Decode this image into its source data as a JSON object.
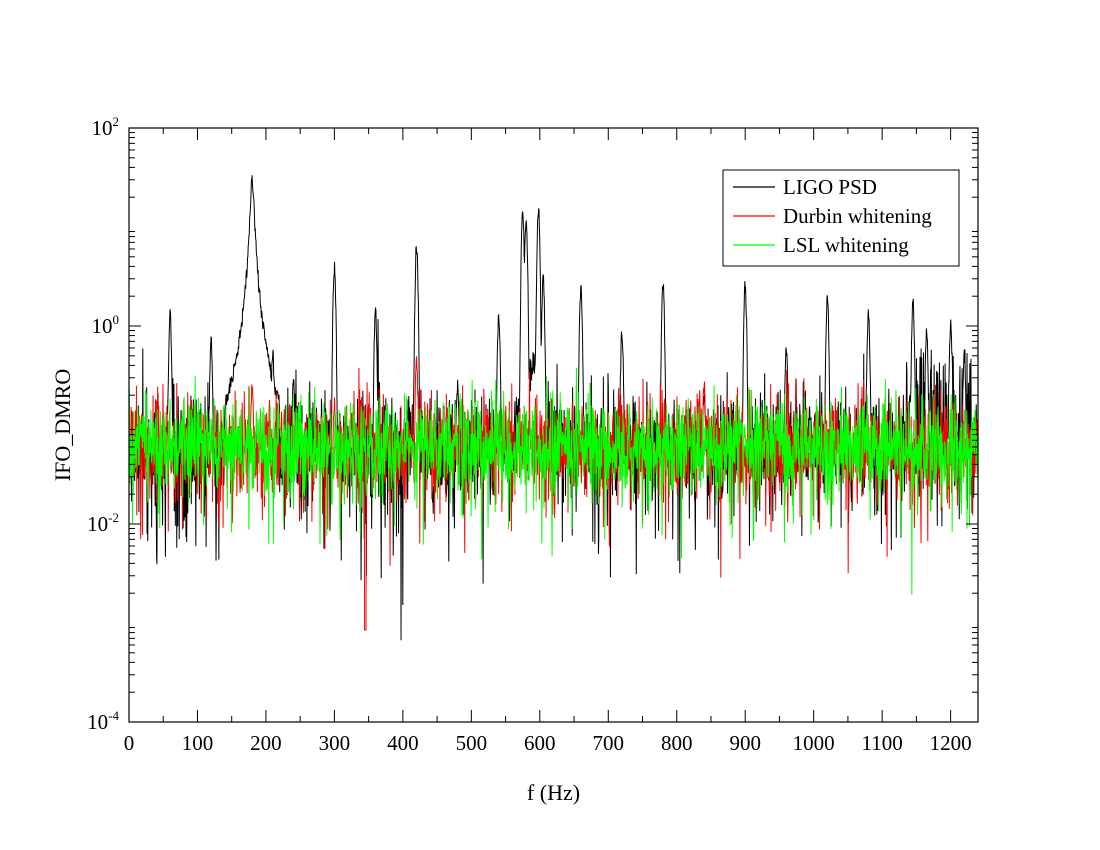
{
  "chart_data": {
    "type": "line",
    "xlabel": "f (Hz)",
    "ylabel": "IFO_DMRO",
    "xlim": [
      0,
      1240
    ],
    "ylim": [
      0.0001,
      100
    ],
    "yscale": "log",
    "x_ticks": [
      0,
      100,
      200,
      300,
      400,
      500,
      600,
      700,
      800,
      900,
      1000,
      1100,
      1200
    ],
    "x_tick_labels": [
      "0",
      "100",
      "200",
      "300",
      "400",
      "500",
      "600",
      "700",
      "800",
      "900",
      "1000",
      "1100",
      "1200"
    ],
    "y_ticks": [
      {
        "value": 100,
        "base": "10",
        "exp": "2"
      },
      {
        "value": 1,
        "base": "10",
        "exp": "0"
      },
      {
        "value": 0.01,
        "base": "10",
        "exp": "-2"
      },
      {
        "value": 0.0001,
        "base": "10",
        "exp": "-4"
      }
    ],
    "grid": false,
    "legend_position": "top-right",
    "series": [
      {
        "name": "LIGO PSD",
        "color": "#000000",
        "noise": {
          "median": 0.06,
          "log_spread": 1.0,
          "seed": 11,
          "extra_floor_drop": true
        },
        "peaks": [
          {
            "f": 60,
            "amp": 1.5
          },
          {
            "f": 120,
            "amp": 0.8
          },
          {
            "f": 180,
            "amp": 35,
            "wide": true
          },
          {
            "f": 210,
            "amp": 0.6
          },
          {
            "f": 240,
            "amp": 0.35
          },
          {
            "f": 300,
            "amp": 4.5
          },
          {
            "f": 360,
            "amp": 1.6
          },
          {
            "f": 420,
            "amp": 7.5
          },
          {
            "f": 480,
            "amp": 0.3
          },
          {
            "f": 540,
            "amp": 1.4
          },
          {
            "f": 575,
            "amp": 16
          },
          {
            "f": 580,
            "amp": 14
          },
          {
            "f": 598,
            "amp": 18
          },
          {
            "f": 605,
            "amp": 3.5
          },
          {
            "f": 660,
            "amp": 2.8
          },
          {
            "f": 720,
            "amp": 1.0
          },
          {
            "f": 780,
            "amp": 3.0
          },
          {
            "f": 840,
            "amp": 0.25
          },
          {
            "f": 900,
            "amp": 3.0
          },
          {
            "f": 960,
            "amp": 0.7
          },
          {
            "f": 1020,
            "amp": 2.2
          },
          {
            "f": 1080,
            "amp": 1.6
          },
          {
            "f": 1145,
            "amp": 2.0
          },
          {
            "f": 1165,
            "amp": 1.0
          },
          {
            "f": 1200,
            "amp": 1.2
          },
          {
            "f": 1220,
            "amp": 0.6
          }
        ]
      },
      {
        "name": "Durbin whitening",
        "color": "#ff0000",
        "noise": {
          "median": 0.06,
          "log_spread": 0.9,
          "seed": 23
        },
        "peaks": [
          {
            "f": 180,
            "amp": 0.3
          },
          {
            "f": 300,
            "amp": 0.2
          },
          {
            "f": 345,
            "amp": 0.00085,
            "dip": true
          },
          {
            "f": 420,
            "amp": 0.5
          },
          {
            "f": 840,
            "amp": 0.3
          }
        ]
      },
      {
        "name": "LSL whitening",
        "color": "#00ff00",
        "noise": {
          "median": 0.06,
          "log_spread": 0.85,
          "seed": 37
        },
        "peaks": []
      }
    ]
  }
}
